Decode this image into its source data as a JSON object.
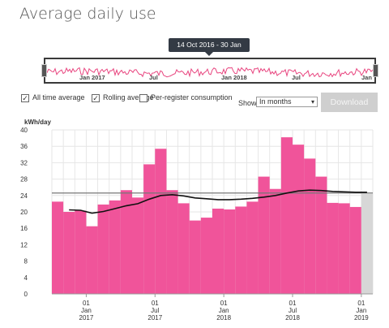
{
  "page": {
    "title": "Average daily use"
  },
  "navigator": {
    "range_label": "14 Oct 2016 - 30 Jan 2019",
    "labels": [
      "Jan 2017",
      "Jul",
      "Jan 2018",
      "Jul",
      "Jan"
    ],
    "line_color": "#e8457f"
  },
  "controls": {
    "all_time_average": {
      "label": "All time average",
      "checked": true
    },
    "rolling_average": {
      "label": "Rolling average",
      "checked": true
    },
    "per_register": {
      "label": "Per-register consumption",
      "checked": false
    },
    "show_label": "Show",
    "period_select": {
      "value": "In months",
      "options": [
        "In months"
      ]
    },
    "download_label": "Download"
  },
  "chart_data": {
    "type": "bar",
    "ylabel": "kWh/day",
    "ylim": [
      0,
      40
    ],
    "yticks": [
      0,
      4,
      8,
      12,
      16,
      20,
      24,
      28,
      32,
      36,
      40
    ],
    "bar_color": "#f0549a",
    "partial_bar_color": "#d7d7d7",
    "categories": [
      "Oct 2016",
      "Nov 2016",
      "Dec 2016",
      "Jan 2017",
      "Feb 2017",
      "Mar 2017",
      "Apr 2017",
      "May 2017",
      "Jun 2017",
      "Jul 2017",
      "Aug 2017",
      "Sep 2017",
      "Oct 2017",
      "Nov 2017",
      "Dec 2017",
      "Jan 2018",
      "Feb 2018",
      "Mar 2018",
      "Apr 2018",
      "May 2018",
      "Jun 2018",
      "Jul 2018",
      "Aug 2018",
      "Sep 2018",
      "Oct 2018",
      "Nov 2018",
      "Dec 2018",
      "Jan 2019"
    ],
    "values": [
      22.5,
      20,
      20.3,
      16.5,
      21.8,
      22.8,
      25.3,
      23.5,
      31.6,
      35.4,
      25.3,
      22.1,
      17.9,
      18.6,
      20.8,
      20.6,
      21.3,
      22.5,
      28.6,
      25.6,
      38.2,
      36.4,
      33,
      28.6,
      22.2,
      22.1,
      21.2,
      24.4
    ],
    "partial_last": true,
    "all_time_average": 24.6,
    "rolling_average": {
      "color": "#111111",
      "values": [
        null,
        20.5,
        20.4,
        19.7,
        20.1,
        20.8,
        21.5,
        22.0,
        23.1,
        24.0,
        24.2,
        23.9,
        23.4,
        23.2,
        23.0,
        23.0,
        23.1,
        23.3,
        23.6,
        24.0,
        24.6,
        25.1,
        25.3,
        25.2,
        25.0,
        24.9,
        24.8,
        24.8
      ]
    },
    "x_tick_labels": [
      {
        "day": "01",
        "month": "Jan",
        "year": "2017"
      },
      {
        "day": "01",
        "month": "Jul",
        "year": "2017"
      },
      {
        "day": "01",
        "month": "Jan",
        "year": "2018"
      },
      {
        "day": "01",
        "month": "Jul",
        "year": "2018"
      },
      {
        "day": "01",
        "month": "Jan",
        "year": "2019"
      }
    ],
    "x_tick_categories": [
      "Jan 2017",
      "Jul 2017",
      "Jan 2018",
      "Jul 2018",
      "Jan 2019"
    ],
    "grid": true
  }
}
